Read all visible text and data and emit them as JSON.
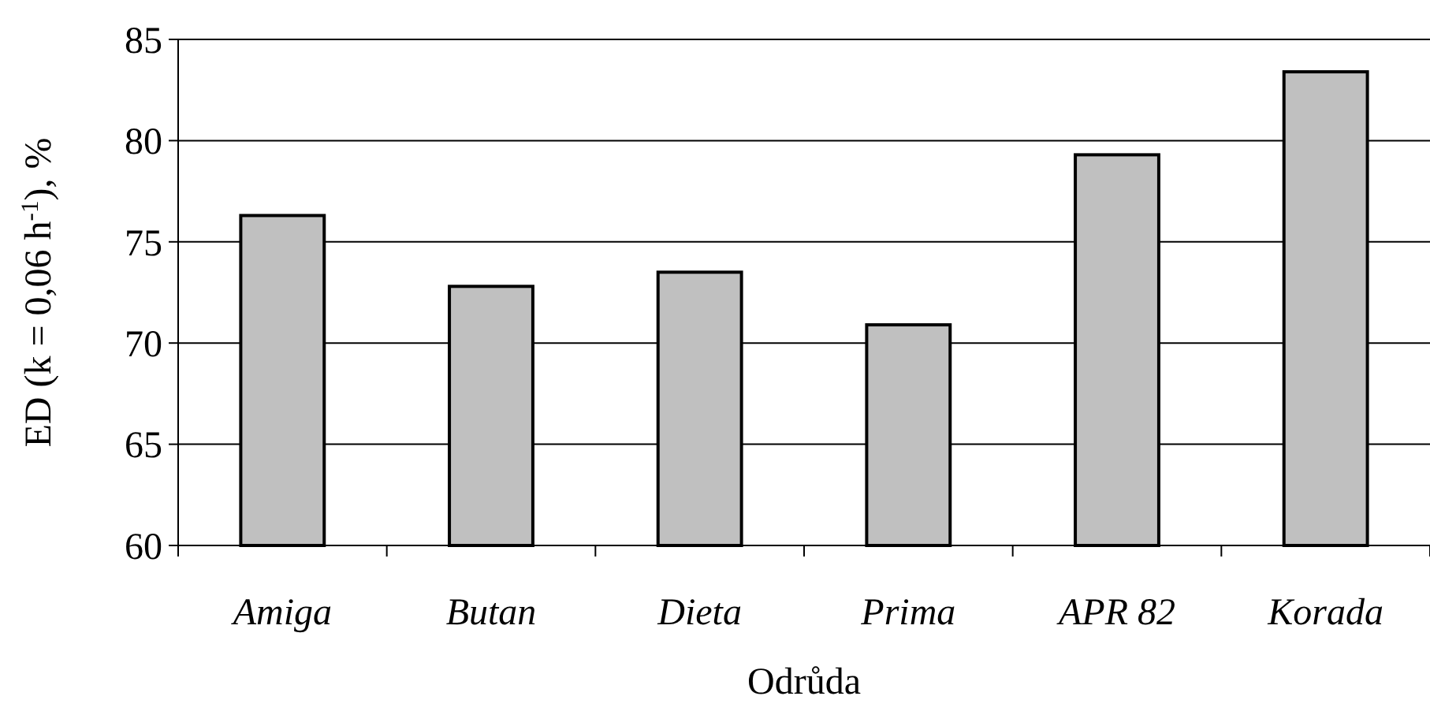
{
  "chart_data": {
    "type": "bar",
    "xlabel": "Odrůda",
    "ylabel": "ED (k = 0,06 h$^{-1}$), %",
    "categories": [
      "Amiga",
      "Butan",
      "Dieta",
      "Prima",
      "APR 82",
      "Korada"
    ],
    "values": [
      76.3,
      72.8,
      73.5,
      70.9,
      79.3,
      83.4
    ],
    "color": "#c0c0c0",
    "ylim": [
      60,
      85
    ],
    "yticks": [
      60,
      65,
      70,
      75,
      80,
      85
    ],
    "grid": "y"
  }
}
